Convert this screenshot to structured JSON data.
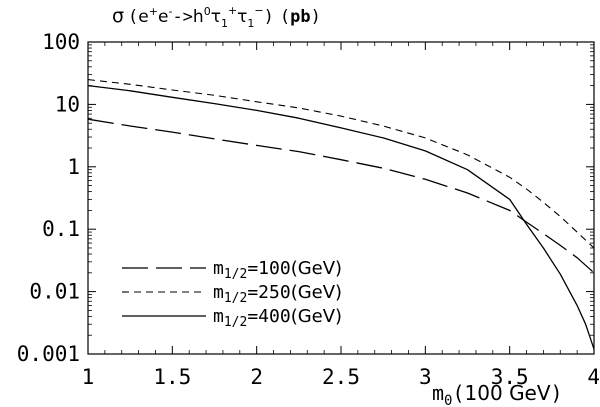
{
  "chart_data": {
    "type": "line",
    "title": {
      "sigma": "σ",
      "open": "(",
      "e1": "e",
      "plus": "+",
      "e2": "e",
      "minus": "-",
      "arrow": "->",
      "h": "h",
      "zero": "0",
      "tau1": "τ",
      "tau1_sub": "1",
      "tau1_sup": "+",
      "tau2": "τ",
      "tau2_sub": "1",
      "tau2_sup": "−",
      "close": ")",
      "unit_open": "(",
      "unit": "pb",
      "unit_close": ")"
    },
    "xlabel": {
      "m": "m",
      "sub": "0",
      "unit_open": "(",
      "unit": "100 GeV",
      "unit_close": ")"
    },
    "xlim": [
      1,
      4
    ],
    "ylim": [
      0.001,
      100
    ],
    "yscale": "log",
    "grid": false,
    "legend_position": "bottom-left",
    "xticks": [
      {
        "value": 1,
        "label": "1"
      },
      {
        "value": 1.5,
        "label": "1.5"
      },
      {
        "value": 2,
        "label": "2"
      },
      {
        "value": 2.5,
        "label": "2.5"
      },
      {
        "value": 3,
        "label": "3"
      },
      {
        "value": 3.5,
        "label": "3.5"
      },
      {
        "value": 4,
        "label": "4"
      }
    ],
    "yticks": [
      {
        "value": 100,
        "label": "100"
      },
      {
        "value": 10,
        "label": "10"
      },
      {
        "value": 1,
        "label": "1"
      },
      {
        "value": 0.1,
        "label": "0.1"
      },
      {
        "value": 0.01,
        "label": "0.01"
      },
      {
        "value": 0.001,
        "label": "0.001"
      }
    ],
    "series": [
      {
        "name": {
          "m": "m",
          "sub": "1/2",
          "value": "=100",
          "unit": "(GeV)"
        },
        "dash": "long-dash",
        "color": "#000000",
        "x": [
          1.0,
          1.25,
          1.5,
          1.75,
          2.0,
          2.25,
          2.5,
          2.75,
          3.0,
          3.25,
          3.5,
          3.6,
          3.7,
          3.8,
          3.9,
          4.0
        ],
        "y": [
          5.8,
          4.5,
          3.6,
          2.8,
          2.2,
          1.75,
          1.3,
          0.95,
          0.63,
          0.38,
          0.2,
          0.13,
          0.085,
          0.055,
          0.035,
          0.02
        ]
      },
      {
        "name": {
          "m": "m",
          "sub": "1/2",
          "value": "=250",
          "unit": "(GeV)"
        },
        "dash": "short-dash",
        "color": "#000000",
        "x": [
          1.0,
          1.25,
          1.5,
          1.75,
          2.0,
          2.25,
          2.5,
          2.75,
          3.0,
          3.25,
          3.5,
          3.6,
          3.7,
          3.8,
          3.9,
          4.0
        ],
        "y": [
          25,
          21,
          17,
          14,
          11,
          8.8,
          6.5,
          4.5,
          2.9,
          1.55,
          0.68,
          0.44,
          0.27,
          0.16,
          0.09,
          0.05
        ]
      },
      {
        "name": {
          "m": "m",
          "sub": "1/2",
          "value": "=400",
          "unit": "(GeV)"
        },
        "dash": "solid",
        "color": "#000000",
        "x": [
          1.0,
          1.25,
          1.5,
          1.75,
          2.0,
          2.25,
          2.5,
          2.75,
          3.0,
          3.25,
          3.5,
          3.6,
          3.7,
          3.8,
          3.9,
          3.95,
          4.0
        ],
        "y": [
          20,
          16.5,
          13,
          10.3,
          8,
          6,
          4.2,
          2.9,
          1.8,
          0.9,
          0.3,
          0.12,
          0.05,
          0.019,
          0.006,
          0.003,
          0.0012
        ]
      }
    ]
  }
}
